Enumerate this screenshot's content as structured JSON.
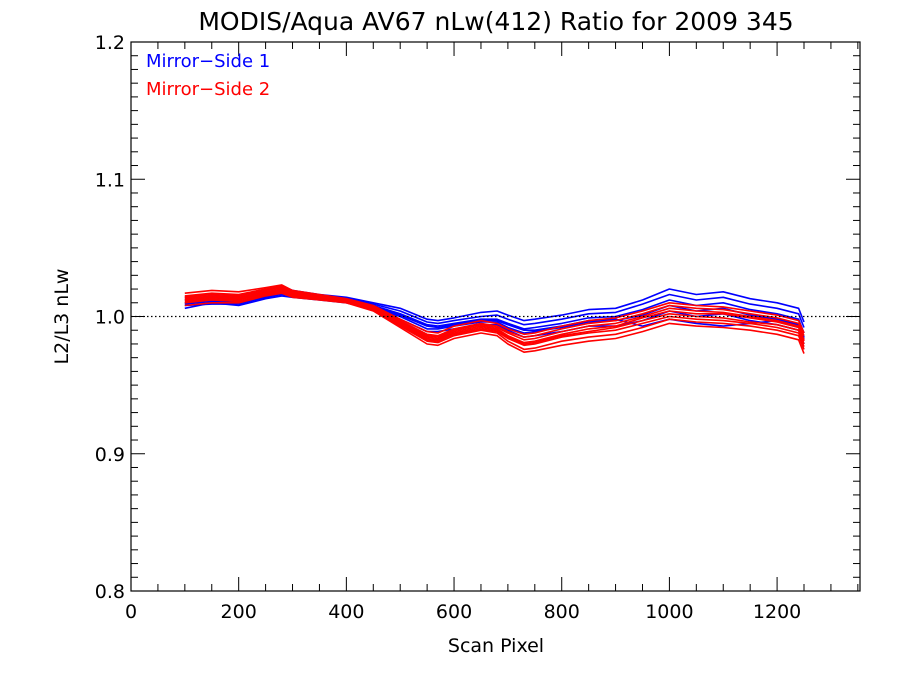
{
  "chart_data": {
    "type": "line",
    "title": "MODIS/Aqua AV67 nLw(412) Ratio for 2009 345",
    "xlabel": "Scan Pixel",
    "ylabel": "L2/L3 nLw",
    "xlim": [
      0,
      1354
    ],
    "ylim": [
      0.8,
      1.2
    ],
    "xticks": [
      0,
      200,
      400,
      600,
      800,
      1000,
      1200
    ],
    "xtick_labels": [
      "0",
      "200",
      "400",
      "600",
      "800",
      "1000",
      "1200"
    ],
    "yticks": [
      0.8,
      0.9,
      1.0,
      1.1,
      1.2
    ],
    "ytick_labels": [
      "0.8",
      "0.9",
      "1.0",
      "1.1",
      "1.2"
    ],
    "reference_line": {
      "y": 1.0,
      "style": "dotted"
    },
    "grid": false,
    "legend": {
      "placement": "top-left",
      "entries": [
        {
          "label": "Mirror−Side 1",
          "color": "#0000ff"
        },
        {
          "label": "Mirror−Side 2",
          "color": "#ff0000"
        }
      ]
    },
    "x": [
      100,
      150,
      200,
      250,
      280,
      300,
      350,
      400,
      450,
      500,
      550,
      570,
      600,
      650,
      680,
      700,
      730,
      750,
      800,
      850,
      900,
      950,
      1000,
      1050,
      1100,
      1150,
      1200,
      1240,
      1250
    ],
    "series": [
      {
        "mirror_side": 1,
        "color": "#0000ff",
        "values": [
          1.01,
          1.012,
          1.011,
          1.015,
          1.018,
          1.016,
          1.014,
          1.012,
          1.008,
          1.002,
          0.994,
          0.993,
          0.995,
          0.998,
          0.998,
          0.995,
          0.991,
          0.992,
          0.995,
          0.999,
          1.0,
          1.005,
          1.012,
          1.008,
          1.01,
          1.005,
          1.002,
          0.998,
          0.988
        ]
      },
      {
        "mirror_side": 1,
        "color": "#0000ff",
        "values": [
          1.008,
          1.009,
          1.009,
          1.014,
          1.016,
          1.015,
          1.013,
          1.011,
          1.006,
          1.0,
          0.991,
          0.991,
          0.993,
          0.996,
          0.996,
          0.992,
          0.988,
          0.989,
          0.992,
          0.996,
          0.997,
          1.001,
          1.008,
          1.004,
          1.006,
          1.001,
          0.998,
          0.994,
          0.984
        ]
      },
      {
        "mirror_side": 1,
        "color": "#0000ff",
        "values": [
          1.012,
          1.014,
          1.013,
          1.017,
          1.02,
          1.018,
          1.015,
          1.013,
          1.009,
          1.004,
          0.996,
          0.995,
          0.997,
          1.0,
          1.001,
          0.998,
          0.994,
          0.995,
          0.998,
          1.002,
          1.003,
          1.009,
          1.016,
          1.012,
          1.014,
          1.009,
          1.006,
          1.002,
          0.992
        ]
      },
      {
        "mirror_side": 1,
        "color": "#0000ff",
        "values": [
          1.006,
          1.01,
          1.008,
          1.013,
          1.015,
          1.014,
          1.012,
          1.01,
          1.005,
          0.998,
          0.989,
          0.989,
          0.991,
          0.994,
          0.994,
          0.99,
          0.985,
          0.986,
          0.989,
          0.993,
          0.993,
          0.997,
          1.004,
          1.0,
          1.002,
          0.997,
          0.994,
          0.99,
          0.98
        ]
      },
      {
        "mirror_side": 1,
        "color": "#0000ff",
        "values": [
          1.014,
          1.016,
          1.015,
          1.019,
          1.022,
          1.019,
          1.016,
          1.014,
          1.01,
          1.006,
          0.998,
          0.997,
          0.999,
          1.003,
          1.004,
          1.001,
          0.997,
          0.998,
          1.001,
          1.005,
          1.006,
          1.012,
          1.02,
          1.016,
          1.018,
          1.013,
          1.01,
          1.006,
          0.996
        ]
      },
      {
        "mirror_side": 1,
        "color": "#0000ff",
        "values": [
          1.009,
          1.011,
          1.01,
          1.014,
          1.017,
          1.016,
          1.013,
          1.011,
          1.007,
          1.001,
          0.993,
          0.992,
          0.994,
          0.997,
          0.997,
          0.994,
          0.99,
          0.99,
          0.993,
          0.997,
          0.998,
          0.993,
          0.998,
          0.995,
          0.993,
          0.995,
          0.997,
          0.993,
          0.985
        ]
      },
      {
        "mirror_side": 2,
        "color": "#ff0000",
        "values": [
          1.014,
          1.016,
          1.015,
          1.019,
          1.021,
          1.017,
          1.014,
          1.012,
          1.006,
          0.996,
          0.986,
          0.985,
          0.99,
          0.994,
          0.992,
          0.988,
          0.983,
          0.984,
          0.989,
          0.993,
          0.995,
          1.0,
          1.006,
          1.004,
          1.003,
          1.0,
          0.997,
          0.993,
          0.983
        ]
      },
      {
        "mirror_side": 2,
        "color": "#ff0000",
        "values": [
          1.011,
          1.013,
          1.012,
          1.017,
          1.019,
          1.015,
          1.013,
          1.011,
          1.005,
          0.994,
          0.983,
          0.982,
          0.987,
          0.991,
          0.989,
          0.984,
          0.979,
          0.98,
          0.985,
          0.988,
          0.99,
          0.995,
          1.0,
          0.998,
          0.997,
          0.995,
          0.992,
          0.988,
          0.978
        ]
      },
      {
        "mirror_side": 2,
        "color": "#ff0000",
        "values": [
          1.017,
          1.019,
          1.018,
          1.021,
          1.023,
          1.019,
          1.016,
          1.013,
          1.008,
          0.998,
          0.989,
          0.988,
          0.993,
          0.997,
          0.995,
          0.991,
          0.987,
          0.988,
          0.993,
          0.997,
          0.999,
          1.004,
          1.01,
          1.008,
          1.007,
          1.004,
          1.001,
          0.997,
          0.988
        ]
      },
      {
        "mirror_side": 2,
        "color": "#ff0000",
        "values": [
          1.008,
          1.01,
          1.01,
          1.015,
          1.017,
          1.014,
          1.012,
          1.01,
          1.004,
          0.992,
          0.98,
          0.979,
          0.984,
          0.988,
          0.986,
          0.98,
          0.974,
          0.975,
          0.979,
          0.982,
          0.984,
          0.989,
          0.995,
          0.993,
          0.992,
          0.99,
          0.987,
          0.983,
          0.973
        ]
      },
      {
        "mirror_side": 2,
        "color": "#ff0000",
        "values": [
          1.013,
          1.015,
          1.014,
          1.018,
          1.02,
          1.016,
          1.014,
          1.012,
          1.006,
          0.995,
          0.985,
          0.984,
          0.989,
          0.993,
          0.991,
          0.986,
          0.981,
          0.982,
          0.987,
          0.991,
          0.993,
          0.999,
          1.004,
          1.002,
          1.002,
          0.999,
          0.996,
          0.992,
          0.982
        ]
      },
      {
        "mirror_side": 2,
        "color": "#ff0000",
        "values": [
          1.015,
          1.017,
          1.016,
          1.02,
          1.022,
          1.018,
          1.015,
          1.012,
          1.007,
          0.997,
          0.987,
          0.986,
          0.991,
          0.995,
          0.993,
          0.989,
          0.985,
          0.986,
          0.991,
          0.995,
          0.997,
          1.002,
          1.008,
          1.006,
          1.005,
          1.002,
          0.999,
          0.995,
          0.986
        ]
      },
      {
        "mirror_side": 2,
        "color": "#ff0000",
        "values": [
          1.01,
          1.012,
          1.011,
          1.016,
          1.018,
          1.015,
          1.013,
          1.011,
          1.005,
          0.993,
          0.982,
          0.981,
          0.986,
          0.99,
          0.988,
          0.982,
          0.976,
          0.977,
          0.982,
          0.985,
          0.987,
          0.992,
          0.998,
          0.996,
          0.995,
          0.993,
          0.99,
          0.986,
          0.976
        ]
      },
      {
        "mirror_side": 2,
        "color": "#ff0000",
        "values": [
          1.012,
          1.014,
          1.013,
          1.017,
          1.019,
          1.016,
          1.014,
          1.011,
          1.006,
          0.995,
          0.984,
          0.983,
          0.988,
          0.992,
          0.99,
          0.985,
          0.98,
          0.981,
          0.986,
          0.989,
          0.992,
          0.997,
          1.002,
          1.0,
          0.999,
          0.996,
          0.994,
          0.99,
          0.98
        ]
      }
    ]
  }
}
